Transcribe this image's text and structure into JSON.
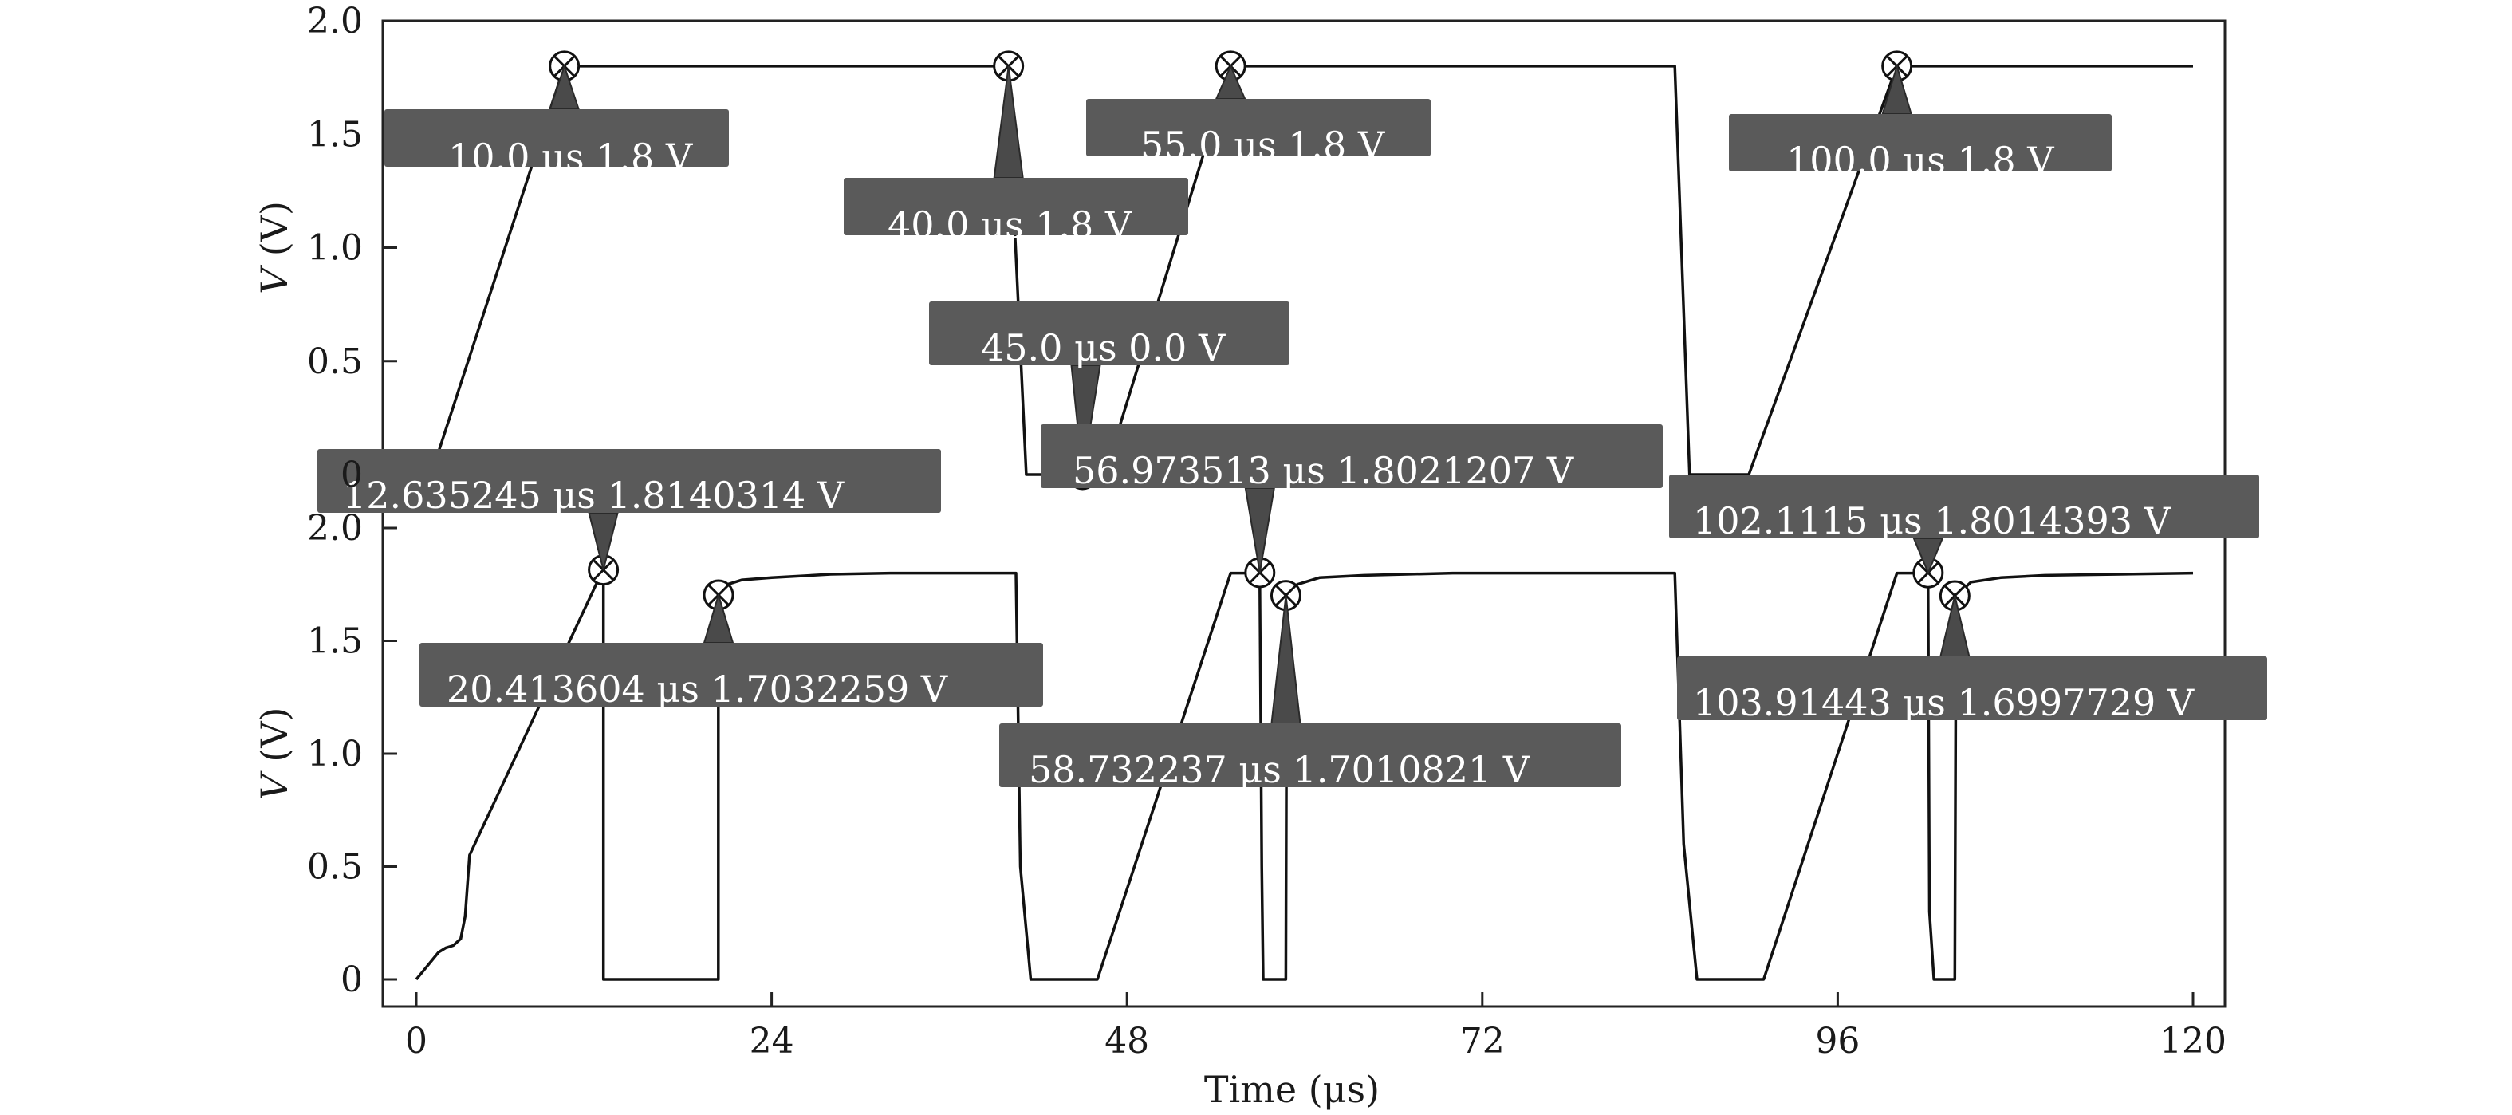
{
  "chart_data": [
    {
      "type": "line",
      "panel": "top",
      "ylabel": "V (V)",
      "xlabel": "",
      "xlim": [
        0,
        120
      ],
      "ylim": [
        0,
        2.0
      ],
      "yticks": [
        "0",
        "0.5",
        "1.0",
        "1.5",
        "2.0"
      ],
      "grid": false,
      "series": [
        {
          "x": [
            0,
            1,
            10,
            40,
            40.3,
            41.2,
            45,
            46.5,
            55,
            85,
            86,
            90,
            100,
            120
          ],
          "y": [
            0,
            0,
            1.8,
            1.8,
            1.25,
            0,
            0,
            0,
            1.8,
            1.8,
            0,
            0,
            1.8,
            1.8
          ]
        }
      ],
      "annotations": [
        {
          "label": "10.0 μs 1.8 V",
          "x": 10.0,
          "y": 1.8
        },
        {
          "label": "40.0 μs 1.8 V",
          "x": 40.0,
          "y": 1.8
        },
        {
          "label": "55.0 μs 1.8 V",
          "x": 55.0,
          "y": 1.8
        },
        {
          "label": "100.0 μs 1.8 V",
          "x": 100.0,
          "y": 1.8
        },
        {
          "label": "45.0 μs 0.0 V",
          "x": 45.0,
          "y": 0.0
        }
      ]
    },
    {
      "type": "line",
      "panel": "bottom",
      "ylabel": "V (V)",
      "xlabel": "Time (μs)",
      "xlim": [
        0,
        120
      ],
      "ylim": [
        0,
        2.0
      ],
      "xticks": [
        "0",
        "24",
        "48",
        "72",
        "96",
        "120"
      ],
      "yticks": [
        "0",
        "0.5",
        "1.0",
        "1.5",
        "2.0"
      ],
      "grid": false,
      "series": [
        {
          "x": [
            0,
            0.5,
            1.0,
            1.5,
            2.0,
            2.5,
            3.0,
            3.3,
            3.6,
            10.0,
            12.5,
            12.64,
            12.64,
            12.9,
            20.0,
            20.4,
            20.4,
            21.0,
            22.0,
            24.0,
            28.0,
            32.0,
            40.5,
            40.8,
            41.5,
            45.0,
            46.0,
            55.0,
            56.2,
            56.97,
            57.1,
            57.2,
            58.5,
            58.73,
            58.8,
            59.5,
            61.0,
            64.0,
            70.0,
            85.0,
            85.6,
            86.5,
            90.0,
            91.0,
            100.0,
            101.5,
            102.1,
            102.2,
            102.5,
            103.7,
            103.91,
            104.0,
            105.0,
            107.0,
            110.0,
            120.0
          ],
          "y": [
            0,
            0.04,
            0.08,
            0.12,
            0.14,
            0.15,
            0.18,
            0.28,
            0.55,
            1.45,
            1.8,
            1.81,
            0,
            0,
            0,
            0,
            1.7,
            1.75,
            1.77,
            1.78,
            1.795,
            1.8,
            1.8,
            0.5,
            0,
            0,
            0,
            1.8,
            1.8,
            1.8,
            0.5,
            0,
            0,
            0,
            1.7,
            1.75,
            1.78,
            1.79,
            1.8,
            1.8,
            0.6,
            0,
            0,
            0,
            1.8,
            1.8,
            1.8,
            0.3,
            0,
            0,
            0,
            1.7,
            1.76,
            1.78,
            1.79,
            1.8
          ]
        }
      ],
      "annotations": [
        {
          "label": "12.635245 μs 1.8140314 V",
          "x": 12.635245,
          "y": 1.8140314
        },
        {
          "label": "20.413604 μs 1.7032259 V",
          "x": 20.413604,
          "y": 1.7032259
        },
        {
          "label": "56.973513 μs 1.8021207 V",
          "x": 56.973513,
          "y": 1.8021207
        },
        {
          "label": "58.732237 μs 1.7010821 V",
          "x": 58.732237,
          "y": 1.7010821
        },
        {
          "label": "102.1115 μs 1.8014393 V",
          "x": 102.1115,
          "y": 1.8014393
        },
        {
          "label": "103.91443 μs 1.6997729 V",
          "x": 103.91443,
          "y": 1.6997729
        }
      ]
    }
  ]
}
